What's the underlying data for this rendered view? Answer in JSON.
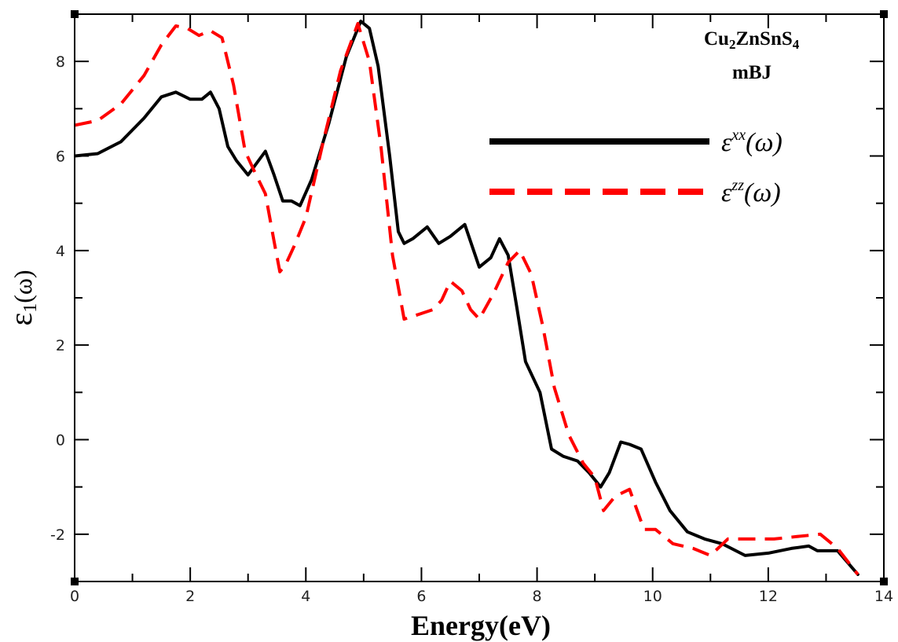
{
  "chart_data": {
    "type": "line",
    "xlabel": "Energy(eV)",
    "ylabel": "ε1(ω)",
    "xlim": [
      0,
      14
    ],
    "ylim": [
      -3,
      9
    ],
    "xticks": [
      0,
      2,
      4,
      6,
      8,
      10,
      12,
      14
    ],
    "yticks": [
      -2,
      0,
      2,
      4,
      6,
      8
    ],
    "annotation": {
      "compound": "Cu2ZnSnS4",
      "method": "mBJ"
    },
    "legend_position": "top-right",
    "series": [
      {
        "name": "εxx(ω)",
        "color": "#000000",
        "style": "solid",
        "x": [
          0,
          0.4,
          0.8,
          1.2,
          1.5,
          1.75,
          2.0,
          2.2,
          2.35,
          2.5,
          2.65,
          2.8,
          3.0,
          3.15,
          3.3,
          3.45,
          3.6,
          3.75,
          3.9,
          4.1,
          4.4,
          4.7,
          4.95,
          5.1,
          5.25,
          5.45,
          5.6,
          5.7,
          5.85,
          6.1,
          6.3,
          6.5,
          6.75,
          7.0,
          7.2,
          7.35,
          7.5,
          7.65,
          7.8,
          8.05,
          8.25,
          8.45,
          8.7,
          8.9,
          9.1,
          9.25,
          9.45,
          9.6,
          9.8,
          10.05,
          10.3,
          10.6,
          10.9,
          11.2,
          11.6,
          12.0,
          12.4,
          12.7,
          12.85,
          13.2,
          13.55
        ],
        "y": [
          6.0,
          6.05,
          6.3,
          6.8,
          7.25,
          7.35,
          7.2,
          7.2,
          7.35,
          7.0,
          6.2,
          5.9,
          5.6,
          5.85,
          6.1,
          5.6,
          5.05,
          5.05,
          4.95,
          5.5,
          6.7,
          8.1,
          8.85,
          8.7,
          7.9,
          6.0,
          4.4,
          4.15,
          4.25,
          4.5,
          4.15,
          4.3,
          4.55,
          3.65,
          3.85,
          4.25,
          3.9,
          2.8,
          1.65,
          1.0,
          -0.2,
          -0.35,
          -0.45,
          -0.7,
          -1.0,
          -0.7,
          -0.05,
          -0.1,
          -0.2,
          -0.9,
          -1.5,
          -1.95,
          -2.1,
          -2.2,
          -2.45,
          -2.4,
          -2.3,
          -2.25,
          -2.35,
          -2.35,
          -2.85
        ]
      },
      {
        "name": "εzz(ω)",
        "color": "#ff0000",
        "style": "dashed",
        "x": [
          0,
          0.4,
          0.8,
          1.2,
          1.5,
          1.75,
          1.95,
          2.15,
          2.35,
          2.55,
          2.75,
          2.95,
          3.1,
          3.3,
          3.45,
          3.55,
          3.65,
          3.8,
          4.0,
          4.3,
          4.6,
          4.9,
          5.1,
          5.3,
          5.5,
          5.7,
          5.95,
          6.2,
          6.35,
          6.5,
          6.7,
          6.85,
          7.0,
          7.25,
          7.5,
          7.7,
          7.9,
          8.1,
          8.3,
          8.55,
          8.8,
          9.0,
          9.15,
          9.35,
          9.6,
          9.85,
          10.05,
          10.35,
          10.7,
          11.0,
          11.3,
          11.7,
          12.1,
          12.5,
          12.9,
          13.2,
          13.55
        ],
        "y": [
          6.65,
          6.75,
          7.1,
          7.7,
          8.35,
          8.75,
          8.7,
          8.55,
          8.65,
          8.5,
          7.5,
          6.1,
          5.7,
          5.2,
          4.2,
          3.55,
          3.7,
          4.1,
          4.7,
          6.3,
          7.8,
          8.8,
          8.0,
          6.2,
          3.9,
          2.55,
          2.65,
          2.75,
          2.95,
          3.35,
          3.15,
          2.75,
          2.55,
          3.1,
          3.75,
          4.0,
          3.5,
          2.4,
          1.1,
          0.1,
          -0.5,
          -0.8,
          -1.5,
          -1.2,
          -1.05,
          -1.9,
          -1.9,
          -2.2,
          -2.3,
          -2.45,
          -2.1,
          -2.1,
          -2.1,
          -2.05,
          -2.0,
          -2.3,
          -2.85
        ]
      }
    ]
  }
}
